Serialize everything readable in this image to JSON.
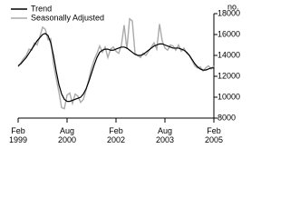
{
  "chart_data": {
    "type": "line",
    "y_label": "no.",
    "x": [
      "Feb 1999",
      "Mar 1999",
      "Apr 1999",
      "May 1999",
      "Jun 1999",
      "Jul 1999",
      "Aug 1999",
      "Sep 1999",
      "Oct 1999",
      "Nov 1999",
      "Dec 1999",
      "Jan 2000",
      "Feb 2000",
      "Mar 2000",
      "Apr 2000",
      "May 2000",
      "Jun 2000",
      "Jul 2000",
      "Aug 2000",
      "Sep 2000",
      "Oct 2000",
      "Nov 2000",
      "Dec 2000",
      "Jan 2001",
      "Feb 2001",
      "Mar 2001",
      "Apr 2001",
      "May 2001",
      "Jun 2001",
      "Jul 2001",
      "Aug 2001",
      "Sep 2001",
      "Oct 2001",
      "Nov 2001",
      "Dec 2001",
      "Jan 2002",
      "Feb 2002",
      "Mar 2002",
      "Apr 2002",
      "May 2002",
      "Jun 2002",
      "Jul 2002",
      "Aug 2002",
      "Sep 2002",
      "Oct 2002",
      "Nov 2002",
      "Dec 2002",
      "Jan 2003",
      "Feb 2003",
      "Mar 2003",
      "Apr 2003",
      "May 2003",
      "Jun 2003",
      "Jul 2003",
      "Aug 2003",
      "Sep 2003",
      "Oct 2003",
      "Nov 2003",
      "Dec 2003",
      "Jan 2004",
      "Feb 2004",
      "Mar 2004",
      "Apr 2004",
      "May 2004",
      "Jun 2004",
      "Jul 2004",
      "Aug 2004",
      "Sep 2004",
      "Oct 2004",
      "Nov 2004",
      "Dec 2004",
      "Jan 2005",
      "Feb 2005"
    ],
    "series": [
      {
        "name": "Trend",
        "color": "#000000",
        "values": [
          13000,
          13200,
          13500,
          13800,
          14200,
          14600,
          15000,
          15400,
          15700,
          16000,
          16100,
          15900,
          15200,
          14000,
          12500,
          11200,
          10300,
          9800,
          9600,
          9600,
          9700,
          9800,
          9900,
          10000,
          10300,
          10800,
          11500,
          12300,
          13100,
          13800,
          14300,
          14500,
          14600,
          14600,
          14500,
          14500,
          14600,
          14700,
          14800,
          14800,
          14700,
          14500,
          14300,
          14100,
          14000,
          14000,
          14100,
          14300,
          14500,
          14700,
          14900,
          15000,
          15100,
          15100,
          15000,
          14900,
          14800,
          14700,
          14700,
          14700,
          14600,
          14500,
          14300,
          14000,
          13600,
          13200,
          12900,
          12700,
          12600,
          12600,
          12700,
          12800,
          12800
        ]
      },
      {
        "name": "Seasonally Adjusted",
        "color": "#aaaaaa",
        "values": [
          12900,
          13300,
          13700,
          14000,
          14600,
          14500,
          15200,
          15000,
          15800,
          16700,
          16500,
          15500,
          15600,
          13200,
          11800,
          10500,
          9000,
          8900,
          10200,
          10400,
          9400,
          10300,
          10100,
          9500,
          9800,
          10700,
          11700,
          12800,
          13600,
          14200,
          14900,
          14300,
          14800,
          13800,
          14600,
          14800,
          14400,
          14200,
          15000,
          16900,
          14600,
          17500,
          17300,
          14200,
          14000,
          13800,
          14200,
          14000,
          14400,
          14800,
          15200,
          14600,
          17000,
          15400,
          14700,
          14500,
          15000,
          14900,
          14500,
          15000,
          14400,
          14700,
          14200,
          14000,
          13500,
          13000,
          12800,
          12900,
          12500,
          12800,
          13000,
          12700,
          13000
        ]
      }
    ],
    "xticks": [
      "Feb 1999",
      "Aug 2000",
      "Feb 2002",
      "Aug 2003",
      "Feb 2005"
    ],
    "ylim": [
      8000,
      18000
    ],
    "yticks": [
      8000,
      10000,
      12000,
      14000,
      16000,
      18000
    ],
    "legend": "top-left"
  }
}
